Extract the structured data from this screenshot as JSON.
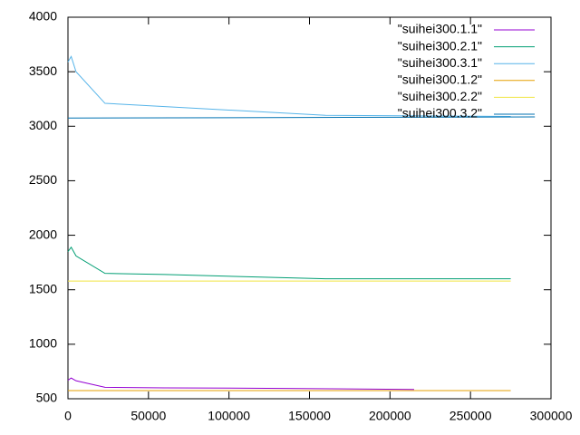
{
  "chart_data": {
    "type": "line",
    "xlim": [
      0,
      300000
    ],
    "xticks": [
      0,
      50000,
      100000,
      150000,
      200000,
      250000,
      300000
    ],
    "ylim": [
      500,
      4000
    ],
    "yticks": [
      500,
      1000,
      1500,
      2000,
      2500,
      3000,
      3500,
      4000
    ],
    "grid": false,
    "legend": "top-right",
    "series": [
      {
        "name": "\"suihei300.1.1\"",
        "color": "#9400d3",
        "x": [
          0,
          2000,
          5000,
          23000,
          60000,
          135000,
          215000
        ],
        "values": [
          670,
          690,
          665,
          605,
          600,
          595,
          585
        ]
      },
      {
        "name": "\"suihei300.2.1\"",
        "color": "#009e73",
        "x": [
          0,
          2000,
          5000,
          23000,
          60000,
          160000,
          275000
        ],
        "values": [
          1850,
          1890,
          1810,
          1650,
          1640,
          1600,
          1600
        ]
      },
      {
        "name": "\"suihei300.3.1\"",
        "color": "#56b4e9",
        "x": [
          0,
          2000,
          5000,
          23000,
          160000,
          275000
        ],
        "values": [
          3590,
          3640,
          3500,
          3210,
          3100,
          3090
        ]
      },
      {
        "name": "\"suihei300.1.2\"",
        "color": "#e69f00",
        "x": [
          0,
          275000
        ],
        "values": [
          575,
          575
        ]
      },
      {
        "name": "\"suihei300.2.2\"",
        "color": "#f0e442",
        "x": [
          0,
          275000
        ],
        "values": [
          1580,
          1580
        ]
      },
      {
        "name": "\"suihei300.3.2\"",
        "color": "#0072b2",
        "x": [
          0,
          290000
        ],
        "values": [
          3075,
          3085
        ]
      }
    ]
  }
}
